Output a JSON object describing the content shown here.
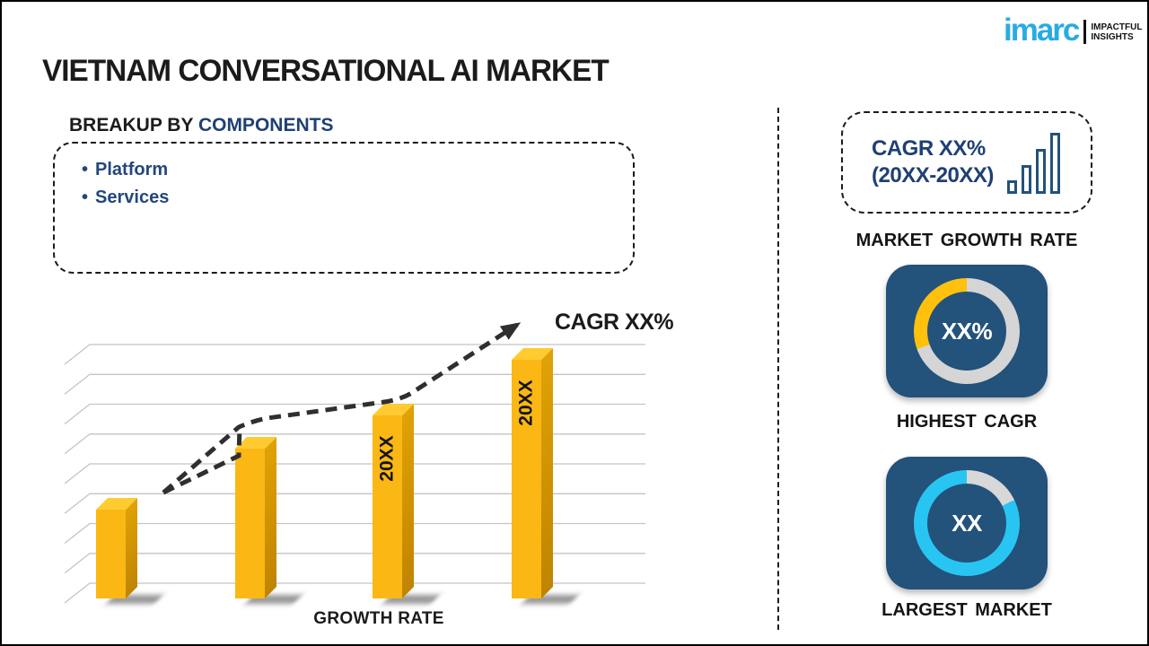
{
  "page": {
    "title": "VIETNAM CONVERSATIONAL AI MARKET"
  },
  "logo": {
    "brand": "imarc",
    "tagline_line1": "IMPACTFUL",
    "tagline_line2": "INSIGHTS",
    "brand_color": "#29ABE2"
  },
  "breakup": {
    "heading_prefix": "BREAKUP BY ",
    "heading_highlight": "COMPONENTS",
    "items": [
      "Platform",
      "Services"
    ]
  },
  "chart_data": {
    "type": "bar",
    "title": "",
    "xlabel": "GROWTH RATE",
    "ylabel": "",
    "categories": [
      "",
      "",
      "20XX",
      "20XX"
    ],
    "values_relative_pct": [
      35,
      59,
      72,
      94
    ],
    "value_note": "placeholder chart - no numeric axis shown; heights estimated from pixels",
    "gridlines": 9,
    "grid": "horizontal lines with 3D perspective ticks on left",
    "legend": "none",
    "trend_line": {
      "style": "dashed-arrow",
      "label": "CAGR XX%"
    },
    "bar_color_front": "#FBB713",
    "bar_color_top": "#FFCB31",
    "bar_color_side_grad_top": "#E0A206",
    "bar_color_side_grad_bottom": "#C08400"
  },
  "right_panel": {
    "tile_color": "#23527B",
    "cagr_box": {
      "line1": "CAGR XX%",
      "line2": "(20XX-20XX)",
      "icon": "ascending-bar-chart"
    },
    "market_growth_rate_label": "MARKET GROWTH RATE",
    "highest_cagr": {
      "value": "XX%",
      "label": "HIGHEST CAGR",
      "ring_segments": [
        {
          "color": "#D5D5D5",
          "start": 0,
          "end": 250
        },
        {
          "color": "#FFC10D",
          "start": 250,
          "end": 360
        }
      ]
    },
    "largest_market": {
      "value": "XX",
      "label": "LARGEST MARKET",
      "ring_segments": [
        {
          "color": "#D8D8D8",
          "start": 0,
          "end": 64
        },
        {
          "color": "#29C5F2",
          "start": 64,
          "end": 360
        }
      ]
    }
  }
}
